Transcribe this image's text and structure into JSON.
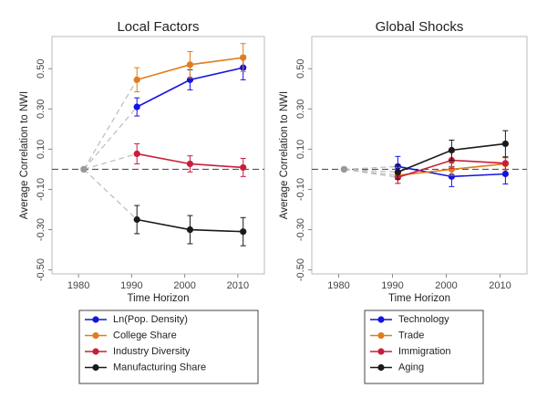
{
  "chart_data": [
    {
      "type": "line",
      "title": "Local Factors",
      "xlabel": "Time Horizon",
      "ylabel": "Average Correlation to NWI",
      "x": [
        1981,
        1991,
        2001,
        2011
      ],
      "xlim": [
        1975,
        2015
      ],
      "xticks": [
        1980,
        1990,
        2000,
        2010
      ],
      "ylim": [
        -0.52,
        0.66
      ],
      "yticks": [
        {
          "value": -0.5,
          "label": "-0.50"
        },
        {
          "value": -0.3,
          "label": "-0.30"
        },
        {
          "value": -0.1,
          "label": "-0.10"
        },
        {
          "value": 0.1,
          "label": "0.10"
        },
        {
          "value": 0.3,
          "label": "0.30"
        },
        {
          "value": 0.5,
          "label": "0.50"
        }
      ],
      "reference_line": 0,
      "origin_color": "#999999",
      "series": [
        {
          "name": "Ln(Pop. Density)",
          "color": "#1414e0",
          "values": [
            0,
            0.31,
            0.445,
            0.505
          ],
          "errors": [
            null,
            0.045,
            0.05,
            0.06
          ]
        },
        {
          "name": "College Share",
          "color": "#e07c1c",
          "values": [
            0,
            0.445,
            0.52,
            0.555
          ],
          "errors": [
            null,
            0.06,
            0.065,
            0.07
          ]
        },
        {
          "name": "Industry Diversity",
          "color": "#c81e3c",
          "values": [
            0,
            0.077,
            0.027,
            0.009
          ],
          "errors": [
            null,
            0.05,
            0.04,
            0.045
          ]
        },
        {
          "name": "Manufacturing Share",
          "color": "#1a1a1a",
          "values": [
            0,
            -0.25,
            -0.3,
            -0.31
          ],
          "errors": [
            null,
            0.07,
            0.07,
            0.07
          ]
        }
      ]
    },
    {
      "type": "line",
      "title": "Global Shocks",
      "xlabel": "Time Horizon",
      "ylabel": "Average Correlation to NWI",
      "x": [
        1981,
        1991,
        2001,
        2011
      ],
      "xlim": [
        1975,
        2015
      ],
      "xticks": [
        1980,
        1990,
        2000,
        2010
      ],
      "ylim": [
        -0.52,
        0.66
      ],
      "yticks": [
        {
          "value": -0.5,
          "label": "-0.50"
        },
        {
          "value": -0.3,
          "label": "-0.30"
        },
        {
          "value": -0.1,
          "label": "-0.10"
        },
        {
          "value": 0.1,
          "label": "0.10"
        },
        {
          "value": 0.3,
          "label": "0.30"
        },
        {
          "value": 0.5,
          "label": "0.50"
        }
      ],
      "reference_line": 0,
      "origin_color": "#999999",
      "series": [
        {
          "name": "Technology",
          "color": "#1414e0",
          "values": [
            0,
            0.014,
            -0.036,
            -0.023
          ],
          "errors": [
            null,
            0.05,
            0.05,
            0.05
          ]
        },
        {
          "name": "Trade",
          "color": "#e07c1c",
          "values": [
            0,
            -0.03,
            0,
            0.027
          ],
          "errors": [
            null,
            0.04,
            0.03,
            0.03
          ]
        },
        {
          "name": "Immigration",
          "color": "#c81e3c",
          "values": [
            0,
            -0.04,
            0.045,
            0.03
          ],
          "errors": [
            null,
            0.03,
            0.04,
            0.03
          ]
        },
        {
          "name": "Aging",
          "color": "#1a1a1a",
          "values": [
            0,
            -0.014,
            0.095,
            0.127
          ],
          "errors": [
            null,
            0.035,
            0.05,
            0.065
          ]
        }
      ]
    }
  ]
}
